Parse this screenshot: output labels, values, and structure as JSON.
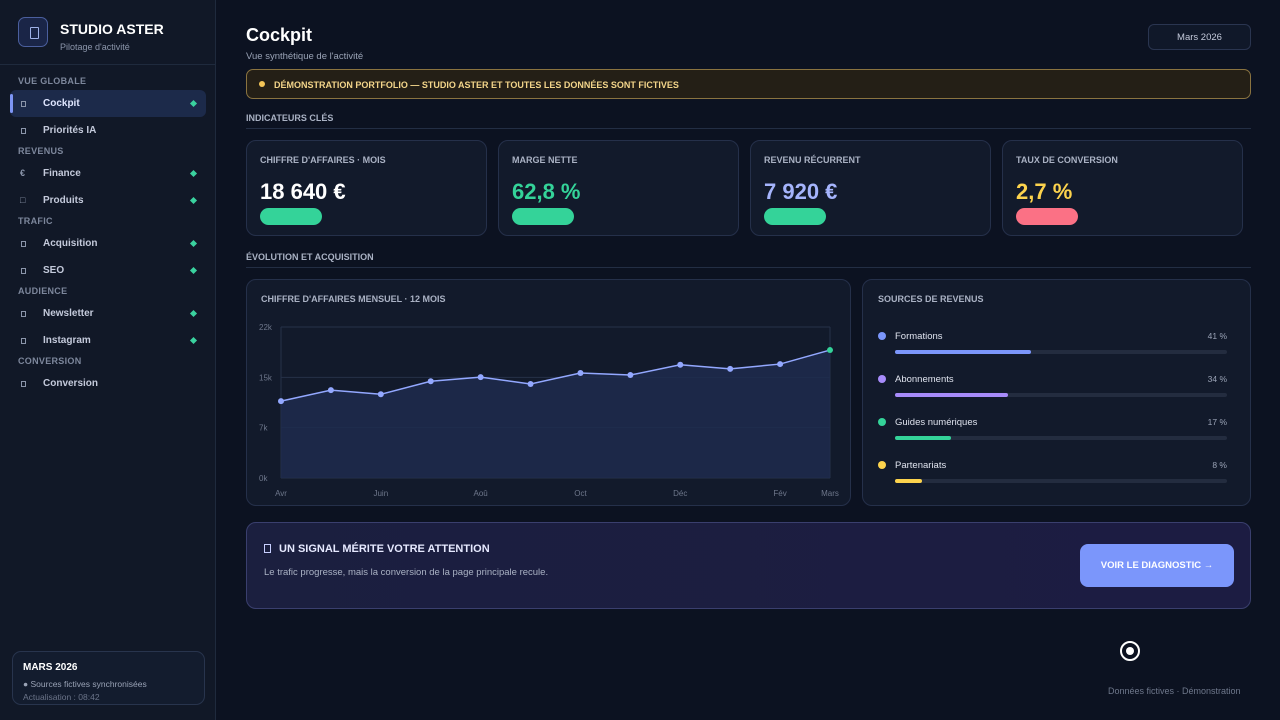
{
  "sidebar": {
    "brand": "STUDIO ASTER",
    "tagline": "Pilotage d'activité",
    "sections": [
      {
        "title": "VUE GLOBALE",
        "items": [
          {
            "label": "Cockpit",
            "active": true,
            "status_dot": true
          },
          {
            "label": "Priorités IA",
            "status_dot": false
          }
        ]
      },
      {
        "title": "REVENUS",
        "items": [
          {
            "icon": "€",
            "label": "Finance",
            "status_dot": true
          },
          {
            "icon": "□",
            "label": "Produits",
            "status_dot": true
          }
        ]
      },
      {
        "title": "TRAFIC",
        "items": [
          {
            "label": "Acquisition",
            "status_dot": true
          },
          {
            "label": "SEO",
            "status_dot": true
          }
        ]
      },
      {
        "title": "AUDIENCE",
        "items": [
          {
            "label": "Newsletter",
            "status_dot": true
          },
          {
            "label": "Instagram",
            "status_dot": true
          }
        ]
      },
      {
        "title": "CONVERSION",
        "items": [
          {
            "label": "Conversion",
            "status_dot": false
          }
        ]
      }
    ],
    "footer": {
      "title": "MARS 2026",
      "status": "● Sources fictives synchronisées",
      "updated": "Actualisation : 08:42"
    }
  },
  "header": {
    "title": "Cockpit",
    "subtitle": "Vue synthétique de l'activité",
    "period": "Mars 2026"
  },
  "banner": "DÉMONSTRATION PORTFOLIO — STUDIO ASTER ET TOUTES LES DONNÉES SONT FICTIVES",
  "kpi_section": "INDICATEURS CLÉS",
  "kpis": [
    {
      "label": "CHIFFRE D'AFFAIRES · MOIS",
      "value": "18 640 €",
      "value_color": "#ffffff",
      "badge_color": "#34d399"
    },
    {
      "label": "MARGE NETTE",
      "value": "62,8 %",
      "value_color": "#34d399",
      "badge_color": "#34d399"
    },
    {
      "label": "REVENU RÉCURRENT",
      "value": "7 920 €",
      "value_color": "#a5b4fc",
      "badge_color": "#34d399"
    },
    {
      "label": "TAUX DE CONVERSION",
      "value": "2,7 %",
      "value_color": "#fcd34d",
      "badge_color": "#fb7185"
    }
  ],
  "evolution_section": "ÉVOLUTION ET ACQUISITION",
  "chart_data": {
    "type": "line",
    "title": "CHIFFRE D'AFFAIRES MENSUEL · 12 MOIS",
    "categories": [
      "Avr",
      null,
      "Juin",
      null,
      "Aoû",
      null,
      "Oct",
      null,
      "Déc",
      null,
      "Fév",
      "Mars"
    ],
    "series": [
      {
        "color": "#93a8ff",
        "values": [
          11200,
          12800,
          12200,
          14100,
          14700,
          13700,
          15300,
          15000,
          16500,
          15900,
          16600,
          18640
        ]
      }
    ],
    "last_point_color": "#34d399",
    "ylim": [
      0,
      22000
    ],
    "yticks": [
      {
        "value": 0,
        "label": "0k"
      },
      {
        "value": 7333,
        "label": "7k"
      },
      {
        "value": 14667,
        "label": "15k"
      },
      {
        "value": 22000,
        "label": "22k"
      }
    ],
    "grid": true
  },
  "sources": {
    "title": "SOURCES DE REVENUS",
    "items": [
      {
        "name": "Formations",
        "color": "#7b96fb",
        "value": 41,
        "value_label": "41 %"
      },
      {
        "name": "Abonnements",
        "color": "#a78bfa",
        "value": 34,
        "value_label": "34 %"
      },
      {
        "name": "Guides numériques",
        "color": "#34d399",
        "value": 17,
        "value_label": "17 %"
      },
      {
        "name": "Partenariats",
        "color": "#fcd34d",
        "value": 8,
        "value_label": "8 %"
      }
    ]
  },
  "alert": {
    "title": "UN SIGNAL MÉRITE VOTRE ATTENTION",
    "text": "Le trafic progresse, mais la conversion de la page principale recule.",
    "button": "VOIR LE DIAGNOSTIC →"
  },
  "footer": "Données fictives · Démonstration"
}
